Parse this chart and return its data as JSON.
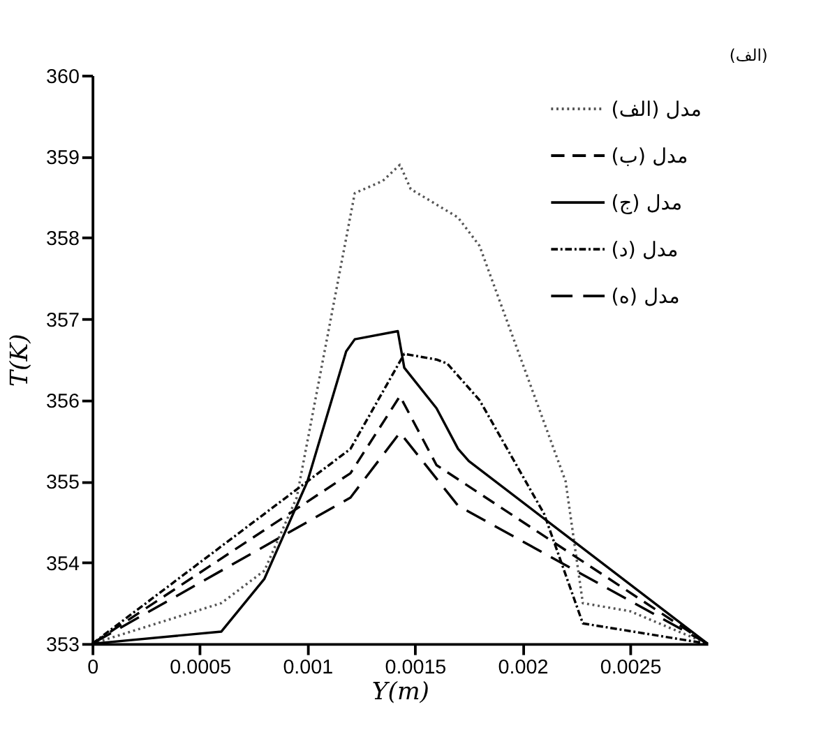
{
  "chart_data": {
    "type": "line",
    "xlabel": "Y(m)",
    "ylabel": "T(K)",
    "annotations": [
      "(الف)"
    ],
    "xlim": [
      0,
      0.00286
    ],
    "xticks": [
      0,
      0.0005,
      0.001,
      0.0015,
      0.002,
      0.0025
    ],
    "ylim": [
      353,
      360
    ],
    "yticks": [
      353,
      354,
      355,
      356,
      357,
      358,
      359,
      360
    ],
    "grid": false,
    "legend": "top right",
    "marker": "none",
    "series": [
      {
        "name": "مدل (الف)",
        "color": "#555555",
        "line_style": "dotted",
        "x": [
          0,
          0.0006,
          0.0008,
          0.00095,
          0.00122,
          0.00135,
          0.00143,
          0.00148,
          0.0017,
          0.0018,
          0.0022,
          0.00228,
          0.0025,
          0.00286
        ],
        "values": [
          353,
          353.5,
          353.9,
          354.8,
          358.55,
          358.7,
          358.9,
          358.6,
          358.25,
          357.9,
          355,
          353.5,
          353.4,
          353
        ]
      },
      {
        "name": "مدل (ب)",
        "color": "#000000",
        "line_style": "dashed",
        "x": [
          0,
          0.0012,
          0.00143,
          0.0016,
          0.00286
        ],
        "values": [
          353,
          355.1,
          356.05,
          355.2,
          353
        ]
      },
      {
        "name": "مدل (ج)",
        "color": "#000000",
        "line_style": "solid",
        "x": [
          0,
          0.0006,
          0.0008,
          0.001,
          0.00118,
          0.00122,
          0.00142,
          0.00145,
          0.0016,
          0.0017,
          0.00175,
          0.00286
        ],
        "values": [
          353,
          353.15,
          353.8,
          355,
          356.6,
          356.75,
          356.85,
          356.4,
          355.9,
          355.4,
          355.25,
          353
        ]
      },
      {
        "name": "مدل (د)",
        "color": "#000000",
        "line_style": "dashdot",
        "x": [
          0,
          0.0012,
          0.00145,
          0.0016,
          0.00165,
          0.0018,
          0.0021,
          0.00228,
          0.00286
        ],
        "values": [
          353,
          355.4,
          356.57,
          356.5,
          356.45,
          356,
          354.6,
          353.25,
          353
        ]
      },
      {
        "name": "مدل (ه)",
        "color": "#000000",
        "line_style": "longdashed",
        "x": [
          0,
          0.0012,
          0.00143,
          0.0017,
          0.00286
        ],
        "values": [
          353,
          354.8,
          355.6,
          354.7,
          353
        ]
      }
    ]
  }
}
